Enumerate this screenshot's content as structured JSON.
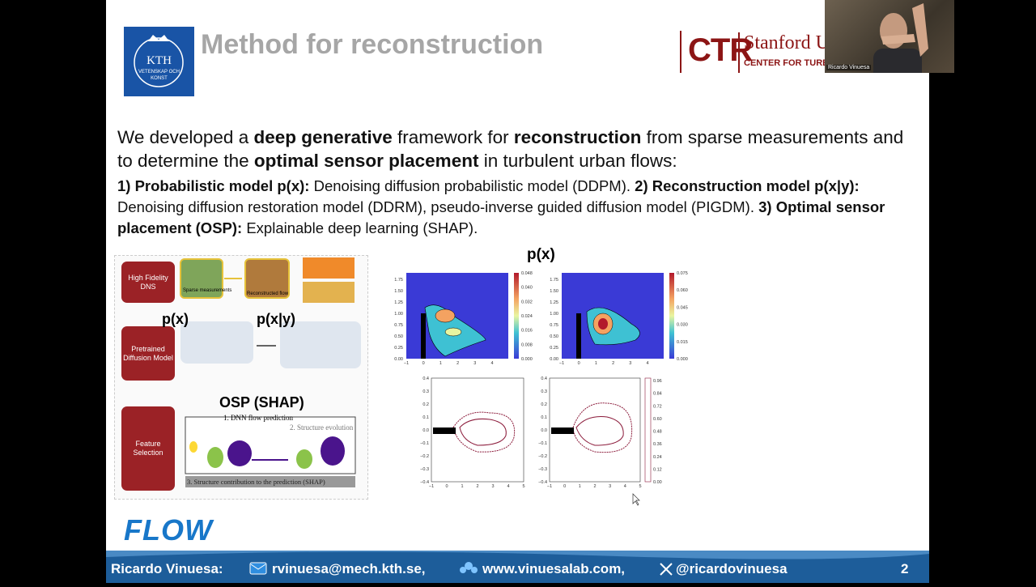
{
  "header": {
    "title": "Method for reconstruction",
    "kth": "KTH",
    "kth_motto": "VETENSKAP OCH KONST",
    "ctr": "CTR",
    "stanford": "Stanford U",
    "ctr_sub": "CENTER FOR TURBU"
  },
  "webcam": {
    "name": "Ricardo Vinuesa"
  },
  "intro": [
    {
      "text": "We developed a ",
      "bold": false
    },
    {
      "text": "deep generative",
      "bold": true
    },
    {
      "text": " framework for ",
      "bold": false
    },
    {
      "text": "reconstruction",
      "bold": true
    },
    {
      "text": " from sparse measurements and to determine the ",
      "bold": false
    },
    {
      "text": "optimal sensor placement",
      "bold": true
    },
    {
      "text": " in turbulent urban flows:",
      "bold": false
    }
  ],
  "points": [
    {
      "text": "1) Probabilistic model p(x):",
      "bold": true
    },
    {
      "text": " Denoising diffusion probabilistic model (DDPM). ",
      "bold": false
    },
    {
      "text": "2) Reconstruction model p(x|y):",
      "bold": true
    },
    {
      "text": " Denoising diffusion restoration model (DDRM), pseudo-inverse guided diffusion model (PIGDM). ",
      "bold": false
    },
    {
      "text": "3) Optimal sensor placement (OSP):",
      "bold": true
    },
    {
      "text": " Explainable deep learning (SHAP).",
      "bold": false
    }
  ],
  "diagram": {
    "stages": [
      "High Fidelity DNS",
      "Pretrained Diffusion Model",
      "Feature Selection"
    ],
    "sparse": "Sparse measurements",
    "reconstructed": "Reconstructed flow",
    "px": "p(x)",
    "pxy": "p(x|y)",
    "osp": "OSP (SHAP)",
    "step1": "1. DNN flow prediction",
    "step2": "2. Structure evolution",
    "step3": "3. Structure contribution to the prediction (SHAP)"
  },
  "plots": {
    "title": "p(x)",
    "top_yticks": [
      "1.75",
      "1.50",
      "1.25",
      "1.00",
      "0.75",
      "0.50",
      "0.25",
      "0.00"
    ],
    "top_xticks": [
      "−1",
      "0",
      "1",
      "2",
      "3",
      "4"
    ],
    "cbar_left": [
      "0.048",
      "0.040",
      "0.032",
      "0.024",
      "0.016",
      "0.008",
      "0.000"
    ],
    "cbar_right": [
      "0.075",
      "0.060",
      "0.045",
      "0.030",
      "0.015",
      "0.000"
    ],
    "bottom_yticks": [
      "0.4",
      "0.3",
      "0.2",
      "0.1",
      "0.0",
      "−0.1",
      "−0.2",
      "−0.3",
      "−0.4"
    ],
    "bottom_xticks": [
      "−1",
      "0",
      "1",
      "2",
      "3",
      "4",
      "5"
    ],
    "cbar_bottom": [
      "0.96",
      "0.84",
      "0.72",
      "0.60",
      "0.48",
      "0.36",
      "0.24",
      "0.12",
      "0.00"
    ]
  },
  "flow_logo": "FLOW",
  "footer": {
    "name": "Ricardo Vinuesa:",
    "email": "rvinuesa@mech.kth.se,",
    "web": "www.vinuesalab.com,",
    "x": "@ricardovinuesa",
    "page": "2"
  }
}
